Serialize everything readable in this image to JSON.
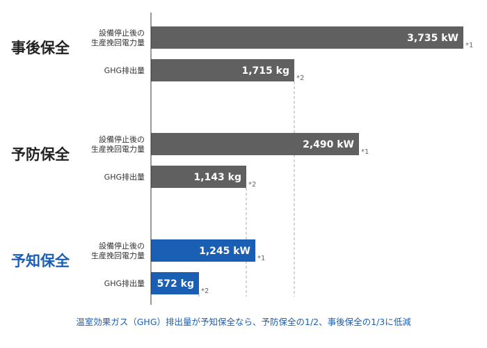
{
  "colors": {
    "gray_bar": "#606060",
    "blue_bar": "#1a5fb4",
    "axis": "#333333",
    "guide": "#aaaaaa",
    "group_text": "#222222",
    "accent_text": "#1a5fb4"
  },
  "chart_data": {
    "type": "bar",
    "orientation": "horizontal",
    "title": "",
    "xlabel": "",
    "ylabel": "",
    "grid": false,
    "legend": "none",
    "note": "GHG排出量は電力量(kW)に比例して表示",
    "groups": [
      {
        "name": "事後保全",
        "highlight": false,
        "rows": [
          {
            "label": "設備停止後の\n生産挽回電力量",
            "value": 3735,
            "unit": "kW",
            "display": "3,735 kW",
            "note": "*1"
          },
          {
            "label": "GHG排出量",
            "value": 1715,
            "unit": "kg",
            "display": "1,715 kg",
            "note": "*2"
          }
        ]
      },
      {
        "name": "予防保全",
        "highlight": false,
        "rows": [
          {
            "label": "設備停止後の\n生産挽回電力量",
            "value": 2490,
            "unit": "kW",
            "display": "2,490 kW",
            "note": "*1"
          },
          {
            "label": "GHG排出量",
            "value": 1143,
            "unit": "kg",
            "display": "1,143 kg",
            "note": "*2"
          }
        ]
      },
      {
        "name": "予知保全",
        "highlight": true,
        "rows": [
          {
            "label": "設備停止後の\n生産挽回電力量",
            "value": 1245,
            "unit": "kW",
            "display": "1,245 kW",
            "note": "*1"
          },
          {
            "label": "GHG排出量",
            "value": 572,
            "unit": "kg",
            "display": "572 kg",
            "note": "*2"
          }
        ]
      }
    ],
    "caption": "温室効果ガス（GHG）排出量が予知保全なら、予防保全の1/2、事後保全の1/3に低減"
  }
}
